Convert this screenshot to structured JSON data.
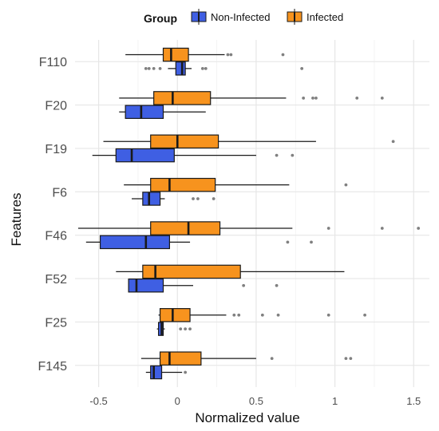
{
  "chart_data": {
    "type": "boxplot",
    "orientation": "horizontal",
    "xlabel": "Normalized value",
    "ylabel": "Features",
    "xlim": [
      -0.65,
      1.6
    ],
    "x_ticks": [
      -0.5,
      0,
      0.5,
      1,
      1.5
    ],
    "x_tick_labels": [
      "-0.5",
      "0",
      "0.5",
      "1",
      "1.5"
    ],
    "grid": true,
    "legend": {
      "title": "Group",
      "position": "top",
      "entries": [
        {
          "label": "Non-Infected",
          "color": "#3f5fe3"
        },
        {
          "label": "Infected",
          "color": "#f7931e"
        }
      ]
    },
    "categories": [
      "F110",
      "F20",
      "F19",
      "F6",
      "F46",
      "F52",
      "F25",
      "F145"
    ],
    "series": [
      {
        "name": "Infected",
        "color": "#f7931e",
        "boxes": [
          {
            "min": -0.33,
            "q1": -0.09,
            "median": -0.04,
            "q3": 0.07,
            "max": 0.3,
            "outliers": [
              0.32,
              0.34,
              0.67
            ]
          },
          {
            "min": -0.37,
            "q1": -0.15,
            "median": -0.03,
            "q3": 0.21,
            "max": 0.69,
            "outliers": [
              0.8,
              0.86,
              0.88,
              1.14,
              1.3
            ]
          },
          {
            "min": -0.47,
            "q1": -0.17,
            "median": 0.0,
            "q3": 0.26,
            "max": 0.88,
            "outliers": [
              1.37
            ]
          },
          {
            "min": -0.34,
            "q1": -0.17,
            "median": -0.05,
            "q3": 0.24,
            "max": 0.71,
            "outliers": [
              1.07
            ]
          },
          {
            "min": -0.63,
            "q1": -0.17,
            "median": 0.07,
            "q3": 0.27,
            "max": 0.73,
            "outliers": [
              0.96,
              1.3,
              1.53
            ]
          },
          {
            "min": -0.39,
            "q1": -0.22,
            "median": -0.14,
            "q3": 0.4,
            "max": 1.06,
            "outliers": []
          },
          {
            "min": -0.12,
            "q1": -0.11,
            "median": -0.03,
            "q3": 0.08,
            "max": 0.31,
            "outliers": [
              0.36,
              0.39,
              0.54,
              0.64,
              0.96,
              1.19
            ]
          },
          {
            "min": -0.23,
            "q1": -0.11,
            "median": -0.05,
            "q3": 0.15,
            "max": 0.5,
            "outliers": [
              0.6,
              1.07,
              1.1
            ]
          }
        ]
      },
      {
        "name": "Non-Infected",
        "color": "#3f5fe3",
        "boxes": [
          {
            "min": -0.06,
            "q1": -0.01,
            "median": 0.03,
            "q3": 0.05,
            "max": 0.09,
            "outliers": [
              -0.2,
              -0.18,
              -0.15,
              -0.11,
              0.16,
              0.18,
              0.79
            ]
          },
          {
            "min": -0.37,
            "q1": -0.33,
            "median": -0.23,
            "q3": -0.09,
            "max": 0.18,
            "outliers": []
          },
          {
            "min": -0.54,
            "q1": -0.39,
            "median": -0.29,
            "q3": -0.02,
            "max": 0.5,
            "outliers": [
              0.63,
              0.73
            ]
          },
          {
            "min": -0.29,
            "q1": -0.22,
            "median": -0.18,
            "q3": -0.11,
            "max": -0.08,
            "outliers": [
              0.1,
              0.13,
              0.23
            ]
          },
          {
            "min": -0.58,
            "q1": -0.49,
            "median": -0.2,
            "q3": -0.05,
            "max": 0.08,
            "outliers": [
              0.7,
              0.85
            ]
          },
          {
            "min": -0.31,
            "q1": -0.31,
            "median": -0.26,
            "q3": -0.09,
            "max": 0.1,
            "outliers": [
              0.42,
              0.63
            ]
          },
          {
            "min": -0.13,
            "q1": -0.12,
            "median": -0.1,
            "q3": -0.09,
            "max": -0.08,
            "outliers": [
              0.02,
              0.05,
              0.08
            ]
          },
          {
            "min": -0.2,
            "q1": -0.17,
            "median": -0.15,
            "q3": -0.1,
            "max": 0.03,
            "outliers": [
              0.05
            ]
          }
        ]
      }
    ]
  }
}
